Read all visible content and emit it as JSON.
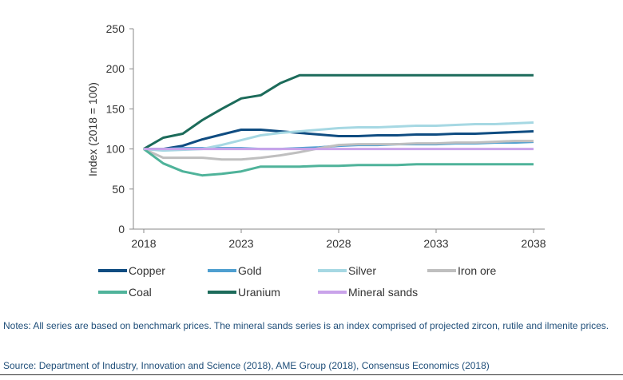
{
  "chart_data": {
    "type": "line",
    "ylabel": "Index (2018 = 100)",
    "xlabel": "",
    "xlim": [
      2018,
      2038
    ],
    "ylim": [
      0,
      250
    ],
    "x_ticks": [
      "2018",
      "2023",
      "2028",
      "2033",
      "2038"
    ],
    "y_ticks": [
      "0",
      "50",
      "100",
      "150",
      "200",
      "250"
    ],
    "grid": false,
    "legend_position": "bottom",
    "x": [
      2018,
      2019,
      2020,
      2021,
      2022,
      2023,
      2024,
      2025,
      2026,
      2027,
      2028,
      2029,
      2030,
      2031,
      2032,
      2033,
      2034,
      2035,
      2036,
      2037,
      2038
    ],
    "series": [
      {
        "name": "Copper",
        "color": "#0f4c81",
        "values": [
          100,
          100,
          104,
          112,
          118,
          124,
          124,
          122,
          120,
          118,
          116,
          116,
          117,
          117,
          118,
          118,
          119,
          119,
          120,
          121,
          122
        ]
      },
      {
        "name": "Gold",
        "color": "#4f9fd0",
        "values": [
          100,
          100,
          101,
          101,
          101,
          101,
          100,
          100,
          101,
          102,
          104,
          105,
          105,
          106,
          106,
          106,
          107,
          107,
          108,
          108,
          109
        ]
      },
      {
        "name": "Silver",
        "color": "#a6d8e3",
        "values": [
          100,
          98,
          99,
          100,
          105,
          111,
          117,
          120,
          122,
          124,
          126,
          127,
          127,
          128,
          129,
          129,
          130,
          131,
          131,
          132,
          133
        ]
      },
      {
        "name": "Iron ore",
        "color": "#bfbfbf",
        "values": [
          100,
          89,
          89,
          89,
          87,
          87,
          89,
          92,
          96,
          101,
          105,
          106,
          106,
          106,
          107,
          107,
          108,
          108,
          109,
          110,
          110
        ]
      },
      {
        "name": "Coal",
        "color": "#4fb39a",
        "values": [
          100,
          82,
          72,
          67,
          69,
          72,
          78,
          78,
          78,
          79,
          79,
          80,
          80,
          80,
          81,
          81,
          81,
          81,
          81,
          81,
          81
        ]
      },
      {
        "name": "Uranium",
        "color": "#1c6b5a",
        "values": [
          100,
          114,
          119,
          136,
          150,
          163,
          167,
          182,
          192,
          192,
          192,
          192,
          192,
          192,
          192,
          192,
          192,
          192,
          192,
          192,
          192
        ]
      },
      {
        "name": "Mineral sands",
        "color": "#c9a3ea",
        "values": [
          100,
          100,
          100,
          100,
          100,
          100,
          100,
          100,
          100,
          100,
          100,
          100,
          100,
          100,
          100,
          100,
          100,
          100,
          100,
          100,
          100
        ]
      }
    ]
  },
  "footer": {
    "notes": "Notes: All series are based on benchmark prices. The mineral sands series is an index comprised of projected zircon, rutile and ilmenite prices.",
    "source": "Source: Department of Industry, Innovation and Science (2018), AME Group (2018), Consensus Economics (2018)"
  }
}
